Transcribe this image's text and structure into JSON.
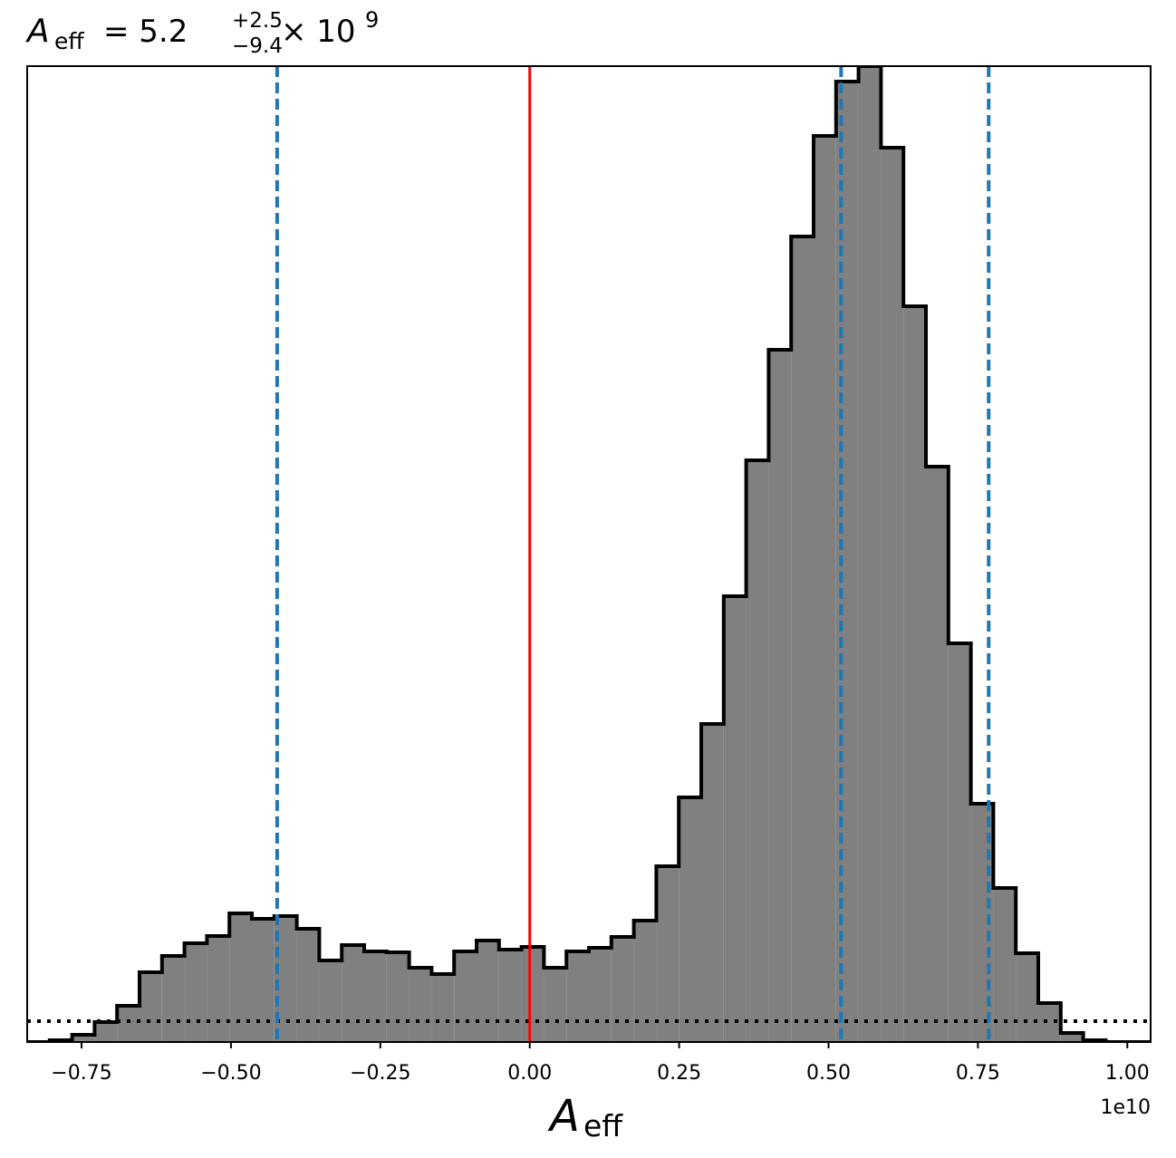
{
  "chart_data": {
    "type": "histogram",
    "title": {
      "symbol": "A",
      "symbol_sub": "eff",
      "median": "= 5.2",
      "upper": "+2.5",
      "lower": "−9.4",
      "times": "× 10",
      "exponent": "9"
    },
    "xlabel": {
      "symbol": "A",
      "symbol_sub": "eff"
    },
    "x_offset_label": "1e10",
    "bins": [
      -0.841,
      -0.8034,
      -0.7658,
      -0.7282,
      -0.6906,
      -0.653,
      -0.6154,
      -0.5778,
      -0.5402,
      -0.5026,
      -0.465,
      -0.4274,
      -0.3898,
      -0.3522,
      -0.3146,
      -0.277,
      -0.2394,
      -0.2018,
      -0.1642,
      -0.1266,
      -0.089,
      -0.0514,
      -0.0138,
      0.0238,
      0.0614,
      0.099,
      0.1366,
      0.1742,
      0.2118,
      0.2494,
      0.287,
      0.3246,
      0.3622,
      0.3998,
      0.4374,
      0.475,
      0.5126,
      0.5502,
      0.5878,
      0.6254,
      0.663,
      0.7006,
      0.7382,
      0.7758,
      0.8134,
      0.851,
      0.8886,
      0.9262,
      0.9638,
      1.0014,
      1.039
    ],
    "values": [
      0,
      2,
      8,
      22,
      40,
      77,
      95,
      109,
      117,
      142,
      136,
      139,
      125,
      90,
      107,
      100,
      99,
      82,
      75,
      100,
      112,
      102,
      105,
      82,
      100,
      104,
      116,
      134,
      194,
      270,
      351,
      492,
      642,
      764,
      889,
      1000,
      1060,
      1077,
      987,
      812,
      635,
      440,
      263,
      170,
      98,
      43,
      10,
      2,
      0,
      0
    ],
    "color": "#808080",
    "edge_color": "#000000",
    "xlim": [
      -0.841,
      1.039
    ],
    "ylim": [
      0,
      1077
    ],
    "xticks": [
      {
        "value": -0.75,
        "label": "−0.75"
      },
      {
        "value": -0.5,
        "label": "−0.50"
      },
      {
        "value": -0.25,
        "label": "−0.25"
      },
      {
        "value": 0,
        "label": "0.00"
      },
      0.25,
      {
        "value": 0.5,
        "label": "0.50"
      },
      0.75,
      {
        "value": 1,
        "label": "1.00"
      }
    ],
    "vlines": [
      {
        "x": 0,
        "color": "#ff0000",
        "style": "solid"
      },
      {
        "x": -0.4227,
        "color": "#1f77b4",
        "style": "dashed"
      },
      {
        "x": 0.521,
        "color": "#1f77b4",
        "style": "dashed"
      },
      {
        "x": 0.768,
        "color": "#1f77b4",
        "style": "dashed"
      }
    ],
    "hline": {
      "y": 23,
      "color": "#000000",
      "style": "dotted"
    }
  }
}
